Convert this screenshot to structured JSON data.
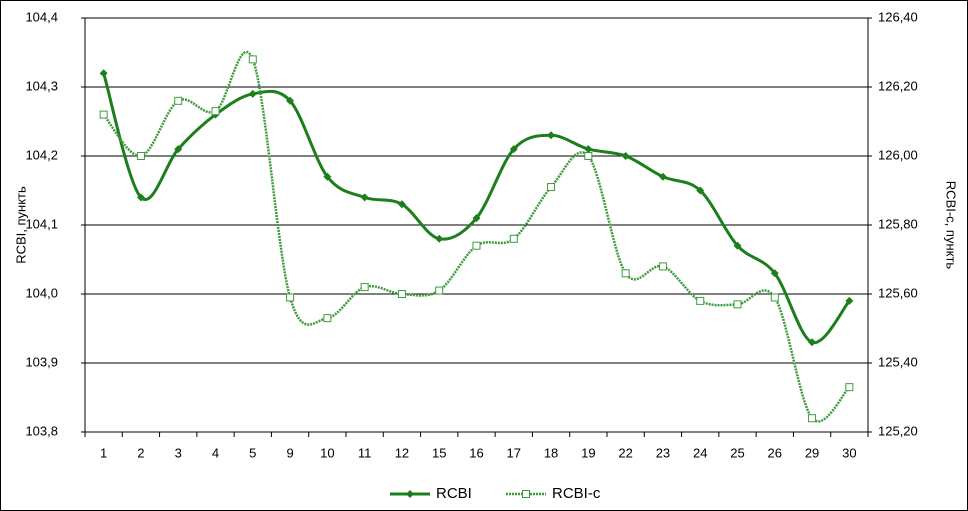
{
  "chart_data": {
    "type": "line",
    "categories": [
      "1",
      "2",
      "3",
      "4",
      "5",
      "9",
      "10",
      "11",
      "12",
      "15",
      "16",
      "17",
      "18",
      "19",
      "22",
      "23",
      "24",
      "25",
      "26",
      "29",
      "30"
    ],
    "series": [
      {
        "name": "RCBI",
        "color": "#1c7f1c",
        "axis": "y",
        "values": [
          104.32,
          104.14,
          104.21,
          104.26,
          104.29,
          104.28,
          104.17,
          104.14,
          104.13,
          104.08,
          104.11,
          104.21,
          104.23,
          104.21,
          104.2,
          104.17,
          104.15,
          104.07,
          104.03,
          103.93,
          103.99
        ]
      },
      {
        "name": "RCBI-c",
        "color": "#3c9c3c",
        "axis": "y2",
        "values": [
          126.12,
          126.0,
          126.16,
          126.13,
          126.28,
          125.59,
          125.53,
          125.62,
          125.6,
          125.61,
          125.74,
          125.76,
          125.91,
          126.0,
          125.66,
          125.68,
          125.58,
          125.57,
          125.59,
          125.24,
          125.33
        ]
      }
    ],
    "ylabel": "RCBI, пункть",
    "y2label": "RCBI-c, пункть",
    "ylim": [
      103.8,
      104.4
    ],
    "yticks": [
      {
        "value": 103.8,
        "label": "103,8"
      },
      {
        "value": 103.9,
        "label": "103,9"
      },
      {
        "value": 104.0,
        "label": "104,0"
      },
      {
        "value": 104.1,
        "label": "104,1"
      },
      {
        "value": 104.2,
        "label": "104,2"
      },
      {
        "value": 104.3,
        "label": "104,3"
      },
      {
        "value": 104.4,
        "label": "104,4"
      }
    ],
    "y2lim": [
      125.2,
      126.4
    ],
    "y2ticks": [
      {
        "value": 125.2,
        "label": "125,20"
      },
      {
        "value": 125.4,
        "label": "125,40"
      },
      {
        "value": 125.6,
        "label": "125,60"
      },
      {
        "value": 125.8,
        "label": "125,80"
      },
      {
        "value": 126.0,
        "label": "126,00"
      },
      {
        "value": 126.2,
        "label": "126,20"
      },
      {
        "value": 126.4,
        "label": "126,40"
      }
    ],
    "grid": true,
    "legend": "bottom"
  }
}
